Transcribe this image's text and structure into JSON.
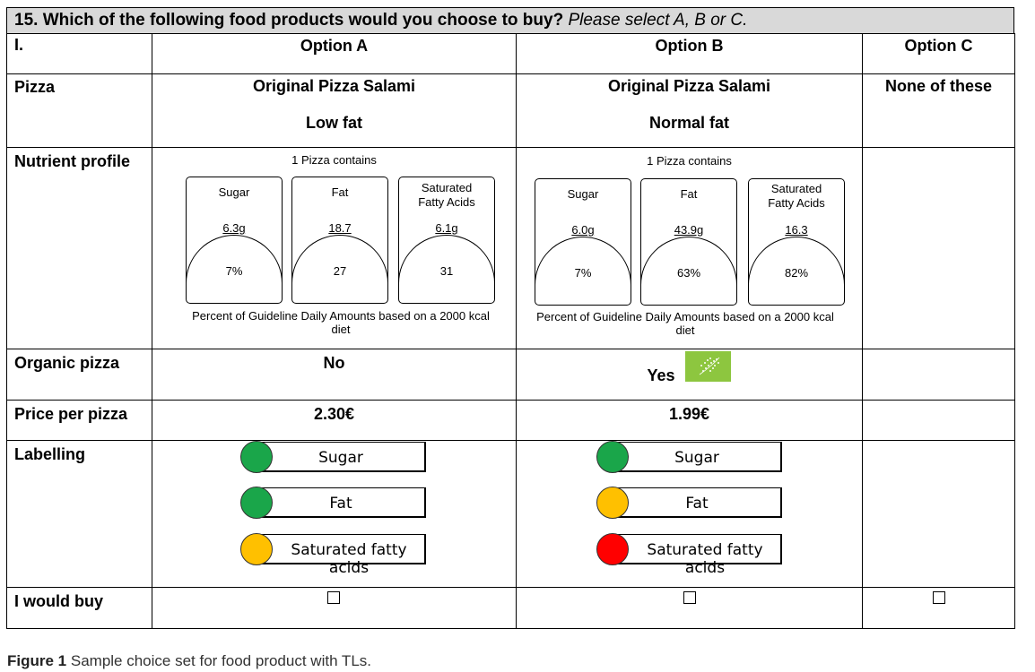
{
  "question": {
    "number_text": "15. Which of the following food products would you choose to buy?",
    "instruction": "Please select A, B or C."
  },
  "header": {
    "set_label": "I.",
    "option_a": "Option A",
    "option_b": "Option B",
    "option_c": "Option C"
  },
  "rows": {
    "pizza": "Pizza",
    "nutrient": "Nutrient profile",
    "organic": "Organic pizza",
    "price": "Price per pizza",
    "labelling": "Labelling",
    "buy": "I would buy"
  },
  "option_a": {
    "product": "Original Pizza Salami",
    "fat_variant": "Low fat",
    "contains": "1 Pizza  contains",
    "nutrients": [
      {
        "name": "Sugar",
        "amount": "6.3g",
        "percent": "7%"
      },
      {
        "name": "Fat",
        "amount": "18.7",
        "percent": "27"
      },
      {
        "name": "Saturated Fatty Acids",
        "amount": "6.1g",
        "percent": "31"
      }
    ],
    "gda_note": "Percent of  Guideline Daily Amounts based on a 2000 kcal diet",
    "organic": "No",
    "price": "2.30€",
    "labels": [
      {
        "name": "Sugar",
        "color": "#1aa64a"
      },
      {
        "name": "Fat",
        "color": "#1aa64a"
      },
      {
        "name": "Saturated fatty acids",
        "color": "#ffc000"
      }
    ]
  },
  "option_b": {
    "product": "Original Pizza Salami",
    "fat_variant": "Normal fat",
    "contains": "1 Pizza  contains",
    "nutrients": [
      {
        "name": "Sugar",
        "amount": "6.0g",
        "percent": "7%"
      },
      {
        "name": "Fat",
        "amount": "43.9g",
        "percent": "63%"
      },
      {
        "name": "Saturated Fatty Acids",
        "amount": "16.3",
        "percent": "82%"
      }
    ],
    "gda_note": "Percent of  Guideline Daily Amounts based on a 2000 kcal diet",
    "organic": "Yes",
    "organic_logo_icon": "eu-organic-leaf-icon",
    "organic_logo_color": "#8dc63f",
    "price": "1.99€",
    "labels": [
      {
        "name": "Sugar",
        "color": "#1aa64a"
      },
      {
        "name": "Fat",
        "color": "#ffc000"
      },
      {
        "name": "Saturated fatty acids",
        "color": "#ff0000"
      }
    ]
  },
  "option_c": {
    "product": "None of these"
  },
  "caption": {
    "label": "Figure 1",
    "text": "Sample choice set for food product with TLs."
  }
}
